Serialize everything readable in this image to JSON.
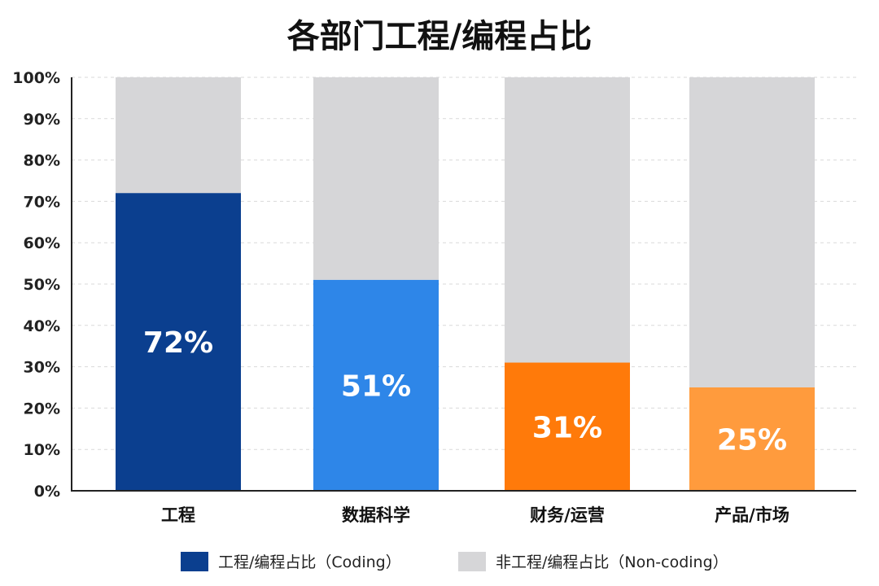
{
  "chart_data": {
    "type": "bar",
    "stacked": true,
    "title": "各部门工程/编程占比",
    "categories": [
      "工程",
      "数据科学",
      "财务/运营",
      "产品/市场"
    ],
    "series": [
      {
        "name": "工程/编程占比（Coding）",
        "values": [
          72,
          51,
          31,
          25
        ],
        "colors": [
          "#0B3F8F",
          "#2E86E8",
          "#FF7A0A",
          "#FF9B3D"
        ],
        "data_labels": [
          "72%",
          "51%",
          "31%",
          "25%"
        ]
      },
      {
        "name": "非工程/编程占比（Non-coding）",
        "values": [
          28,
          49,
          69,
          75
        ],
        "color": "#D6D6D8"
      }
    ],
    "ylim": [
      0,
      100
    ],
    "yticks": [
      0,
      10,
      20,
      30,
      40,
      50,
      60,
      70,
      80,
      90,
      100
    ],
    "ytick_labels": [
      "0%",
      "10%",
      "20%",
      "30%",
      "40%",
      "50%",
      "60%",
      "70%",
      "80%",
      "90%",
      "100%"
    ],
    "grid": true,
    "legend_position": "bottom",
    "legend": [
      {
        "label": "工程/编程占比（Coding）",
        "color": "#0B3F8F"
      },
      {
        "label": "非工程/编程占比（Non-coding）",
        "color": "#D6D6D8"
      }
    ]
  }
}
